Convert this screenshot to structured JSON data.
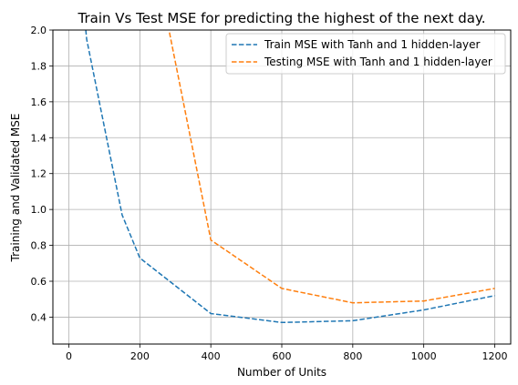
{
  "chart_data": {
    "type": "line",
    "title": "Train Vs Test MSE for predicting the highest of the next day.",
    "xlabel": "Number of Units",
    "ylabel": "Training and Validated MSE",
    "xlim": [
      -45,
      1245
    ],
    "ylim": [
      0.25,
      2.0
    ],
    "xticks": [
      0,
      200,
      400,
      600,
      800,
      1000,
      1200
    ],
    "yticks": [
      0.4,
      0.6,
      0.8,
      1.0,
      1.2,
      1.4,
      1.6,
      1.8,
      2.0
    ],
    "xtick_labels": [
      "0",
      "200",
      "400",
      "600",
      "800",
      "1000",
      "1200"
    ],
    "ytick_labels": [
      "0.4",
      "0.6",
      "0.8",
      "1.0",
      "1.2",
      "1.4",
      "1.6",
      "1.8",
      "2.0"
    ],
    "grid": true,
    "legend_position": "top-right",
    "series": [
      {
        "name": "Train MSE with Tanh and 1 hidden-layer",
        "color": "#1f77b4",
        "style": "dashed",
        "x": [
          10,
          50,
          150,
          200,
          400,
          600,
          800,
          1000,
          1200
        ],
        "y": [
          2.8,
          1.95,
          0.97,
          0.73,
          0.42,
          0.37,
          0.38,
          0.44,
          0.52
        ]
      },
      {
        "name": "Testing MSE with Tanh and 1 hidden-layer",
        "color": "#ff7f0e",
        "style": "dashed",
        "x": [
          200,
          280,
          400,
          600,
          800,
          1000,
          1200
        ],
        "y": [
          3.5,
          2.02,
          0.83,
          0.56,
          0.48,
          0.49,
          0.56
        ]
      }
    ]
  }
}
